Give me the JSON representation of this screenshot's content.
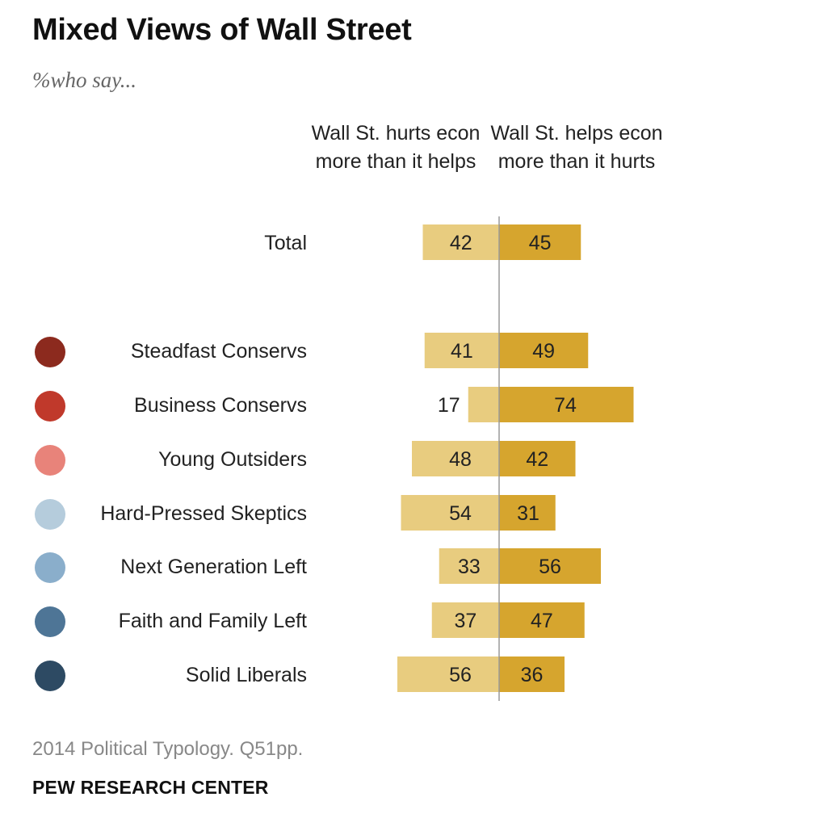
{
  "title": "Mixed Views of Wall Street",
  "subtitle": "%who say...",
  "columns": {
    "hurts": "Wall St. hurts econ more than it helps",
    "helps": "Wall St. helps econ more than it hurts"
  },
  "source": "2014 Political Typology. Q51pp.",
  "brand": "PEW RESEARCH CENTER",
  "colors": {
    "hurts_bar": "#e8cc7f",
    "helps_bar": "#d6a52e",
    "divider": "#999999"
  },
  "chart_data": {
    "type": "bar",
    "orientation": "diverging-horizontal",
    "categories": [
      "Total",
      "Steadfast Conservs",
      "Business Conservs",
      "Young Outsiders",
      "Hard-Pressed Skeptics",
      "Next Generation Left",
      "Faith and Family Left",
      "Solid Liberals"
    ],
    "series": [
      {
        "name": "Wall St. hurts econ more than it helps",
        "values": [
          42,
          41,
          17,
          48,
          54,
          33,
          37,
          56
        ]
      },
      {
        "name": "Wall St. helps econ more than it hurts",
        "values": [
          45,
          49,
          74,
          42,
          31,
          56,
          47,
          36
        ]
      }
    ],
    "category_markers": [
      null,
      "#8c2a1e",
      "#c0392b",
      "#e8837a",
      "#b5ccdc",
      "#8aaecb",
      "#4e7596",
      "#2d4a63"
    ]
  }
}
